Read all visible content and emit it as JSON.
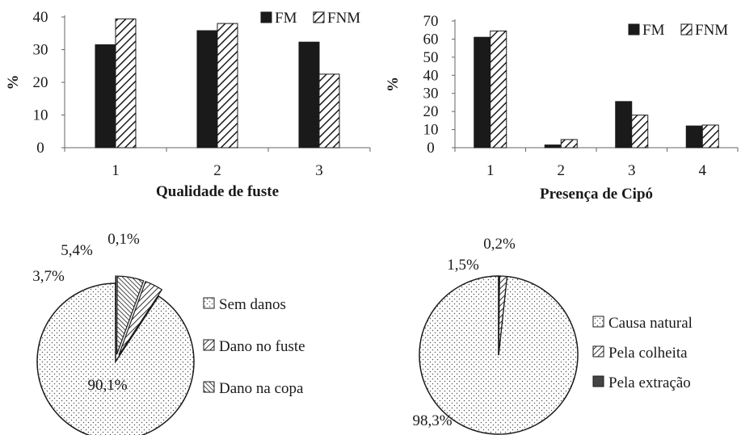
{
  "chart_data": [
    {
      "type": "bar",
      "categories": [
        "1",
        "2",
        "3"
      ],
      "series": [
        {
          "name": "FM",
          "values": [
            31.5,
            35.8,
            32.3
          ]
        },
        {
          "name": "FNM",
          "values": [
            39.4,
            38.0,
            22.5
          ]
        }
      ],
      "xlabel": "Qualidade de fuste",
      "ylabel": "%",
      "ylim": [
        0,
        40
      ],
      "yticks": [
        "0",
        "10",
        "20",
        "30",
        "40"
      ],
      "legend": "top-right",
      "colors": {
        "FM": "#1a1a1a",
        "FNM": "hatch"
      }
    },
    {
      "type": "bar",
      "categories": [
        "1",
        "2",
        "3",
        "4"
      ],
      "series": [
        {
          "name": "FM",
          "values": [
            61,
            1.5,
            25.5,
            12
          ]
        },
        {
          "name": "FNM",
          "values": [
            64.5,
            4.5,
            18,
            12.5
          ]
        }
      ],
      "xlabel": "Presença de Cipó",
      "ylabel": "%",
      "ylim": [
        0,
        70
      ],
      "yticks": [
        "0",
        "10",
        "20",
        "30",
        "40",
        "50",
        "60",
        "70"
      ],
      "legend": "top-right",
      "colors": {
        "FM": "#1a1a1a",
        "FNM": "hatch"
      }
    },
    {
      "type": "pie",
      "slices": [
        {
          "label": "Sem danos",
          "value": 90.1,
          "text": "90,1%",
          "fill": "dots"
        },
        {
          "label": "Dano no fuste",
          "value": 3.7,
          "text": "3,7%",
          "fill": "hatch-fwd"
        },
        {
          "label": "Dano na copa",
          "value": 5.4,
          "text": "5,4%",
          "fill": "hatch-back"
        },
        {
          "label": "",
          "value": 0.1,
          "text": "0,1%",
          "fill": "dark"
        }
      ],
      "legend": "right"
    },
    {
      "type": "pie",
      "slices": [
        {
          "label": "Causa natural",
          "value": 98.3,
          "text": "98,3%",
          "fill": "dots"
        },
        {
          "label": "Pela colheita",
          "value": 1.5,
          "text": "1,5%",
          "fill": "hatch-fwd"
        },
        {
          "label": "Pela extração",
          "value": 0.2,
          "text": "0,2%",
          "fill": "dark"
        }
      ],
      "legend": "right"
    }
  ]
}
